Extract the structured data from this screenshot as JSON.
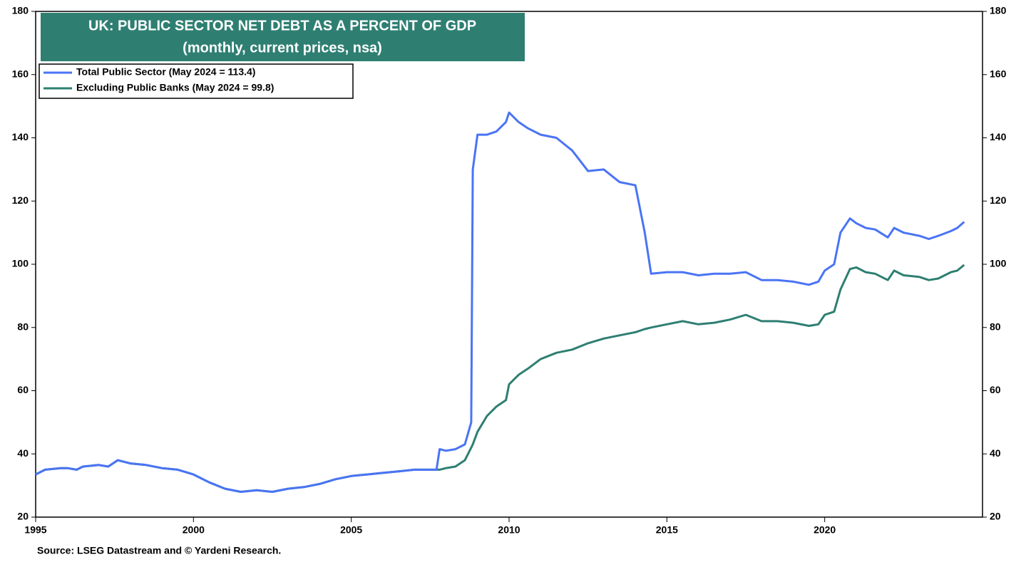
{
  "chart_data": {
    "type": "line",
    "title": "UK: PUBLIC SECTOR NET DEBT AS A PERCENT OF GDP",
    "subtitle": "(monthly, current prices, nsa)",
    "source": "Source: LSEG Datastream and © Yardeni Research.",
    "x": [
      1995.0,
      1995.3,
      1995.8,
      1996.0,
      1996.3,
      1996.5,
      1997.0,
      1997.3,
      1997.6,
      1998.0,
      1998.5,
      1999.0,
      1999.5,
      2000.0,
      2000.5,
      2001.0,
      2001.5,
      2002.0,
      2002.5,
      2003.0,
      2003.5,
      2004.0,
      2004.5,
      2005.0,
      2005.5,
      2006.0,
      2006.5,
      2007.0,
      2007.5,
      2007.7,
      2007.8,
      2008.0,
      2008.3,
      2008.6,
      2008.8,
      2008.85,
      2009.0,
      2009.3,
      2009.6,
      2009.9,
      2010.0,
      2010.3,
      2010.6,
      2011.0,
      2011.5,
      2012.0,
      2012.5,
      2013.0,
      2013.5,
      2014.0,
      2014.3,
      2014.5,
      2015.0,
      2015.5,
      2016.0,
      2016.5,
      2017.0,
      2017.5,
      2018.0,
      2018.5,
      2019.0,
      2019.5,
      2019.8,
      2020.0,
      2020.3,
      2020.5,
      2020.8,
      2021.0,
      2021.3,
      2021.6,
      2022.0,
      2022.2,
      2022.5,
      2023.0,
      2023.3,
      2023.6,
      2024.0,
      2024.2,
      2024.42
    ],
    "series": [
      {
        "name": "Total Public Sector (May 2024 = 113.4)",
        "color": "#4a74f5",
        "values": [
          33.5,
          35,
          35.5,
          35.5,
          35,
          36,
          36.5,
          36,
          38,
          37,
          36.5,
          35.5,
          35,
          33.5,
          31,
          29,
          28,
          28.5,
          28,
          29,
          29.5,
          30.5,
          32,
          33,
          33.5,
          34,
          34.5,
          35,
          35,
          35,
          41.5,
          41,
          41.5,
          43,
          50,
          130,
          141,
          141,
          142,
          145,
          148,
          145,
          143,
          141,
          140,
          136,
          129.5,
          130,
          126,
          125,
          110,
          97,
          97.5,
          97.5,
          96.5,
          97,
          97,
          97.5,
          95,
          95,
          94.5,
          93.5,
          94.5,
          98,
          100,
          110,
          114.5,
          113,
          111.5,
          111,
          108.5,
          111.5,
          110,
          109,
          108,
          109,
          110.5,
          111.5,
          113.4
        ]
      },
      {
        "name": "Excluding Public Banks (May 2024 = 99.8)",
        "color": "#2e7f72",
        "values": [
          33.5,
          35,
          35.5,
          35.5,
          35,
          36,
          36.5,
          36,
          38,
          37,
          36.5,
          35.5,
          35,
          33.5,
          31,
          29,
          28,
          28.5,
          28,
          29,
          29.5,
          30.5,
          32,
          33,
          33.5,
          34,
          34.5,
          35,
          35,
          35,
          35,
          35.5,
          36,
          38,
          42,
          43,
          47,
          52,
          55,
          57,
          62,
          65,
          67,
          70,
          72,
          73,
          75,
          76.5,
          77.5,
          78.5,
          79.5,
          80,
          81,
          82,
          81,
          81.5,
          82.5,
          84,
          82,
          82,
          81.5,
          80.5,
          81,
          84,
          85,
          92,
          98.5,
          99,
          97.5,
          97,
          95,
          98,
          96.5,
          96,
          95,
          95.5,
          97.5,
          98,
          99.8
        ]
      }
    ],
    "xlim": [
      1995,
      2025
    ],
    "xticks": [
      1995,
      2000,
      2005,
      2010,
      2015,
      2020
    ],
    "ylim": [
      20,
      180
    ],
    "yticks": [
      20,
      40,
      60,
      80,
      100,
      120,
      140,
      160,
      180
    ],
    "y2lim": [
      20,
      180
    ],
    "y2ticks": [
      20,
      40,
      60,
      80,
      100,
      120,
      140,
      160,
      180
    ],
    "legend": "upper left"
  }
}
